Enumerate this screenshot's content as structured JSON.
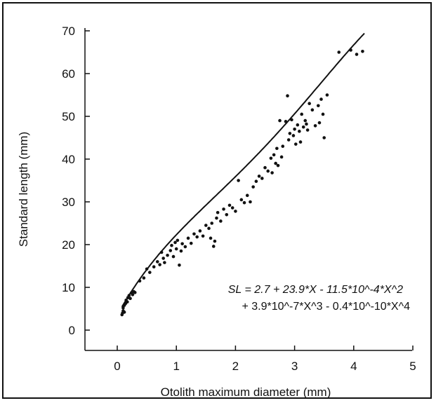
{
  "chart_data": {
    "type": "scatter",
    "title": "",
    "xlabel": "Otolith maximum diameter (mm)",
    "ylabel": "Standard length (mm)",
    "xlim": [
      -0.5,
      5
    ],
    "ylim": [
      -5,
      70
    ],
    "xticks": [
      "0",
      "1",
      "2",
      "3",
      "4",
      "5"
    ],
    "yticks": [
      "0",
      "10",
      "20",
      "30",
      "40",
      "50",
      "60",
      "70"
    ],
    "grid": false,
    "colors": {
      "points": "#111111",
      "curve": "#111111"
    },
    "equation": {
      "line1": "SL = 2.7 + 23.9*X - 11.5*10^-4*X^2",
      "line2": "+ 3.9*10^-7*X^3 - 0.4*10^-10*X^4"
    },
    "points": [
      [
        0.08,
        3.6
      ],
      [
        0.09,
        4.0
      ],
      [
        0.1,
        4.5
      ],
      [
        0.1,
        5.2
      ],
      [
        0.12,
        5.8
      ],
      [
        0.12,
        4.2
      ],
      [
        0.14,
        6.2
      ],
      [
        0.15,
        7.0
      ],
      [
        0.17,
        6.6
      ],
      [
        0.18,
        7.6
      ],
      [
        0.2,
        8.1
      ],
      [
        0.22,
        7.4
      ],
      [
        0.24,
        8.7
      ],
      [
        0.26,
        8.3
      ],
      [
        0.28,
        9.0
      ],
      [
        0.3,
        8.8
      ],
      [
        0.38,
        11.5
      ],
      [
        0.45,
        12.2
      ],
      [
        0.5,
        14.3
      ],
      [
        0.55,
        13.5
      ],
      [
        0.62,
        14.8
      ],
      [
        0.68,
        16.0
      ],
      [
        0.72,
        15.3
      ],
      [
        0.75,
        18.2
      ],
      [
        0.78,
        16.8
      ],
      [
        0.8,
        15.8
      ],
      [
        0.85,
        17.5
      ],
      [
        0.9,
        18.6
      ],
      [
        0.92,
        19.8
      ],
      [
        0.95,
        17.2
      ],
      [
        0.98,
        20.5
      ],
      [
        1.0,
        19.0
      ],
      [
        1.02,
        21.0
      ],
      [
        1.05,
        15.2
      ],
      [
        1.08,
        18.5
      ],
      [
        1.1,
        20.2
      ],
      [
        1.15,
        19.5
      ],
      [
        1.2,
        21.5
      ],
      [
        1.25,
        20.3
      ],
      [
        1.3,
        22.5
      ],
      [
        1.35,
        21.8
      ],
      [
        1.4,
        23.2
      ],
      [
        1.45,
        22.0
      ],
      [
        1.5,
        24.5
      ],
      [
        1.55,
        23.8
      ],
      [
        1.58,
        21.5
      ],
      [
        1.6,
        25.0
      ],
      [
        1.63,
        19.6
      ],
      [
        1.65,
        20.8
      ],
      [
        1.68,
        26.2
      ],
      [
        1.7,
        27.5
      ],
      [
        1.75,
        25.5
      ],
      [
        1.8,
        28.3
      ],
      [
        1.85,
        27.0
      ],
      [
        1.9,
        29.2
      ],
      [
        1.95,
        28.6
      ],
      [
        2.0,
        27.8
      ],
      [
        2.05,
        35.0
      ],
      [
        2.1,
        30.5
      ],
      [
        2.15,
        29.8
      ],
      [
        2.2,
        31.5
      ],
      [
        2.25,
        30.0
      ],
      [
        2.3,
        33.5
      ],
      [
        2.35,
        34.8
      ],
      [
        2.4,
        36.0
      ],
      [
        2.45,
        35.5
      ],
      [
        2.5,
        38.0
      ],
      [
        2.55,
        37.2
      ],
      [
        2.6,
        40.2
      ],
      [
        2.62,
        36.8
      ],
      [
        2.65,
        41.0
      ],
      [
        2.68,
        39.0
      ],
      [
        2.7,
        42.5
      ],
      [
        2.72,
        38.5
      ],
      [
        2.75,
        49.0
      ],
      [
        2.78,
        40.5
      ],
      [
        2.8,
        43.0
      ],
      [
        2.85,
        48.8
      ],
      [
        2.88,
        54.8
      ],
      [
        2.9,
        44.5
      ],
      [
        2.92,
        46.0
      ],
      [
        2.95,
        49.2
      ],
      [
        2.98,
        45.5
      ],
      [
        3.0,
        47.0
      ],
      [
        3.02,
        43.5
      ],
      [
        3.05,
        48.0
      ],
      [
        3.08,
        46.5
      ],
      [
        3.1,
        44.0
      ],
      [
        3.12,
        50.5
      ],
      [
        3.15,
        47.5
      ],
      [
        3.18,
        49.0
      ],
      [
        3.2,
        48.2
      ],
      [
        3.22,
        46.8
      ],
      [
        3.25,
        53.0
      ],
      [
        3.3,
        51.5
      ],
      [
        3.35,
        47.8
      ],
      [
        3.4,
        52.5
      ],
      [
        3.42,
        48.5
      ],
      [
        3.45,
        54.0
      ],
      [
        3.48,
        50.5
      ],
      [
        3.5,
        45.0
      ],
      [
        3.55,
        55.0
      ],
      [
        3.75,
        65.0
      ],
      [
        3.95,
        65.5
      ],
      [
        4.05,
        64.5
      ],
      [
        4.15,
        65.2
      ]
    ]
  }
}
